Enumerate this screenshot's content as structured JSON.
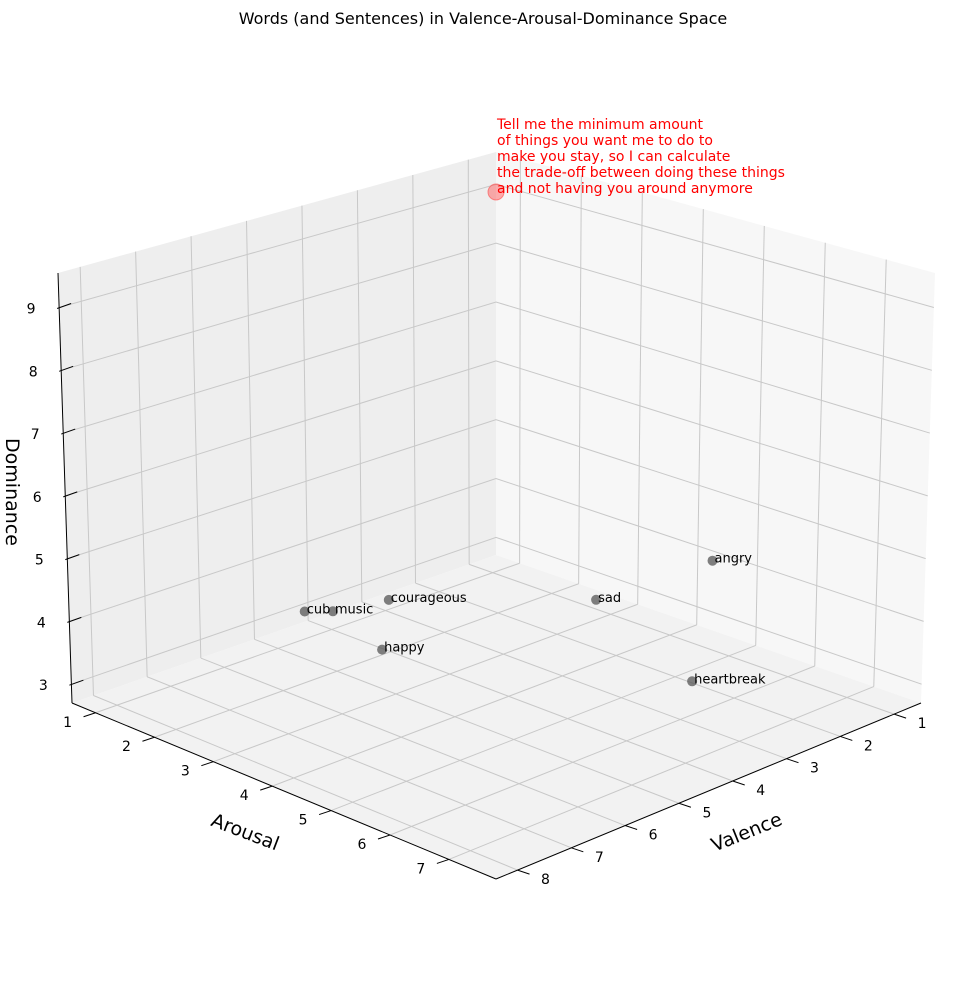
{
  "chart_data": {
    "type": "scatter3d",
    "title": "Words (and Sentences) in Valence-Arousal-Dominance Space",
    "xlabel": "Valence",
    "ylabel": "Arousal",
    "zlabel": "Dominance",
    "valence_ticks": [
      "1",
      "2",
      "3",
      "4",
      "5",
      "6",
      "7",
      "8"
    ],
    "arousal_ticks": [
      "1",
      "2",
      "3",
      "4",
      "5",
      "6",
      "7"
    ],
    "dominance_ticks": [
      "3",
      "4",
      "5",
      "6",
      "7",
      "8",
      "9"
    ],
    "grid": true,
    "points": [
      {
        "label": "angry",
        "valence": 2.5,
        "arousal": 6.2,
        "dominance": 5.5
      },
      {
        "label": "courageous",
        "valence": 7.5,
        "arousal": 5.3,
        "dominance": 6.3
      },
      {
        "label": "happy",
        "valence": 8.4,
        "arousal": 6.0,
        "dominance": 6.1
      },
      {
        "label": "music",
        "valence": 8.0,
        "arousal": 4.8,
        "dominance": 6.1
      },
      {
        "label": "sad",
        "valence": 2.1,
        "arousal": 3.8,
        "dominance": 3.8
      },
      {
        "label": "heartbreak",
        "valence": 2.2,
        "arousal": 5.5,
        "dominance": 3.2
      },
      {
        "label": "cub",
        "valence": 6.6,
        "arousal": 3.0,
        "dominance": 4.9
      }
    ],
    "highlight": {
      "lines": [
        "Tell me the minimum amount",
        "of things you want me to do to",
        "make you stay, so I can calculate",
        "the trade-off between doing these things",
        "and not having you around anymore"
      ],
      "color": "#ff0000"
    }
  }
}
